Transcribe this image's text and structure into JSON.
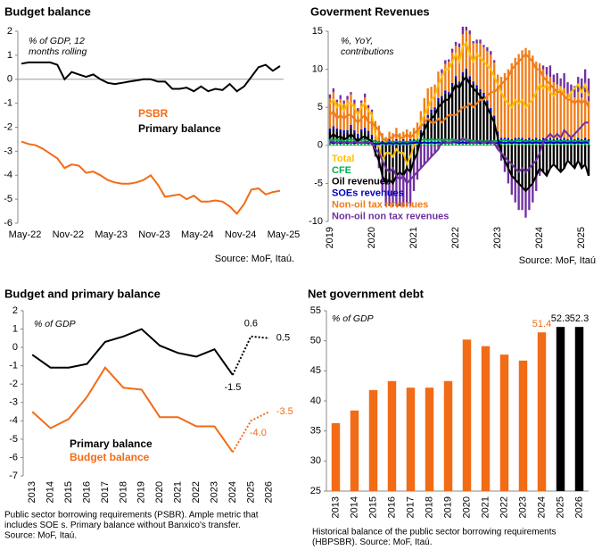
{
  "chart_data": [
    {
      "type": "line",
      "title": "Budget balance",
      "annotation": [
        "% of GDP, 12",
        "months rolling"
      ],
      "categories": [
        "May-22",
        null,
        null,
        null,
        null,
        null,
        "Nov-22",
        null,
        null,
        null,
        null,
        null,
        "May-23",
        null,
        null,
        null,
        null,
        null,
        "Nov-23",
        null,
        null,
        null,
        null,
        null,
        "May-24",
        null,
        null,
        null,
        null,
        null,
        "Nov-24",
        null,
        null,
        null,
        null,
        null,
        "May-25"
      ],
      "series": [
        {
          "name": "PSBR",
          "color": "#f26b16",
          "values": [
            -2.6,
            -2.7,
            -2.75,
            -2.9,
            -3.1,
            -3.3,
            -3.7,
            -3.55,
            -3.6,
            -3.9,
            -3.85,
            -4.0,
            -4.2,
            -4.3,
            -4.35,
            -4.35,
            -4.3,
            -4.2,
            -4.0,
            -4.4,
            -4.9,
            -4.85,
            -4.8,
            -5.0,
            -4.85,
            -5.1,
            -5.1,
            -5.05,
            -5.1,
            -5.3,
            -5.6,
            -5.2,
            -4.6,
            -4.55,
            -4.8,
            -4.7,
            -4.65
          ]
        },
        {
          "name": "Primary balance",
          "color": "#000000",
          "values": [
            0.65,
            0.7,
            0.7,
            0.7,
            0.7,
            0.6,
            0.0,
            0.3,
            0.2,
            0.1,
            0.2,
            0.0,
            -0.15,
            -0.2,
            -0.15,
            -0.1,
            -0.05,
            0.0,
            0.0,
            -0.1,
            -0.1,
            -0.4,
            -0.4,
            -0.35,
            -0.5,
            -0.3,
            -0.5,
            -0.4,
            -0.45,
            -0.2,
            -0.5,
            -0.3,
            0.1,
            0.5,
            0.6,
            0.35,
            0.55
          ]
        }
      ],
      "ylim": [
        -6,
        2
      ],
      "yticks": [
        -6,
        -5,
        -4,
        -3,
        -2,
        -1,
        0,
        1,
        2
      ],
      "zero_line": true,
      "source": "Source: MoF, Itaú."
    },
    {
      "type": "bar",
      "stacked": true,
      "title": "Goverment Revenues",
      "annotation": [
        "%, YoY,",
        "contributions"
      ],
      "categories": [
        "2019",
        null,
        null,
        null,
        null,
        null,
        null,
        null,
        null,
        null,
        null,
        null,
        "2020",
        null,
        null,
        null,
        null,
        null,
        null,
        null,
        null,
        null,
        null,
        null,
        "2021",
        null,
        null,
        null,
        null,
        null,
        null,
        null,
        null,
        null,
        null,
        null,
        "2022",
        null,
        null,
        null,
        null,
        null,
        null,
        null,
        null,
        null,
        null,
        null,
        "2023",
        null,
        null,
        null,
        null,
        null,
        null,
        null,
        null,
        null,
        null,
        null,
        "2024",
        null,
        null,
        null,
        null,
        null,
        null,
        null,
        null,
        null,
        null,
        null,
        "2025",
        null,
        null
      ],
      "series": [
        {
          "name": "Total",
          "type": "line",
          "color": "#ffc000",
          "values": [
            5.5,
            6,
            5,
            5.5,
            4.5,
            5.5,
            5.5,
            5,
            4,
            5,
            5.5,
            4.5,
            4,
            1.5,
            0,
            -2,
            -1,
            -1,
            -1.5,
            -0.5,
            -1,
            -1,
            -2.5,
            -1.5,
            0,
            1,
            3,
            4,
            5,
            6,
            6.5,
            8,
            9,
            10,
            10,
            11,
            12,
            11,
            13,
            13.5,
            12,
            11,
            12,
            11.5,
            11,
            10.5,
            10,
            9,
            8,
            7,
            6,
            5.5,
            5,
            6,
            5.5,
            6,
            5,
            5.5,
            6,
            7,
            8,
            7.5,
            8,
            7,
            6.5,
            7,
            7.5,
            6.5,
            6,
            7,
            7.5,
            8,
            7,
            8,
            6.5
          ]
        },
        {
          "name": "CFE",
          "color": "#00b050",
          "values": [
            0.8,
            0.7,
            0.8,
            0.6,
            0.8,
            0.7,
            0.8,
            0.7,
            0.6,
            0.8,
            0.7,
            0.8,
            0.6,
            0.5,
            0.4,
            0.3,
            0.4,
            0.5,
            0.4,
            0.5,
            0.4,
            0.5,
            0.4,
            0.5,
            0.5,
            0.6,
            0.7,
            0.8,
            0.7,
            0.8,
            0.7,
            0.8,
            0.7,
            0.8,
            0.7,
            0.8,
            0.7,
            0.6,
            0.7,
            0.8,
            0.7,
            0.6,
            0.5,
            0.6,
            0.5,
            0.6,
            0.5,
            0.6,
            0.5,
            0.6,
            0.7,
            0.6,
            0.5,
            0.6,
            0.7,
            0.6,
            0.5,
            0.6,
            0.5,
            0.6,
            0.5,
            0.6,
            0.5,
            0.6,
            0.5,
            0.6,
            0.5,
            0.6,
            0.5,
            0.6,
            0.5,
            0.6,
            0.5,
            0.6,
            0.5
          ]
        },
        {
          "name": "Oil revenues",
          "color": "#000000",
          "values": [
            1,
            1.5,
            1,
            1.2,
            0.8,
            1,
            1.5,
            1,
            0.5,
            1,
            1.2,
            0.8,
            0.5,
            -1,
            -2,
            -4,
            -5,
            -4.5,
            -5,
            -4,
            -3.5,
            -4,
            -3,
            -3.5,
            -2,
            -1,
            1,
            2,
            3,
            3.5,
            4,
            5,
            5.5,
            6,
            6,
            7,
            8,
            7.5,
            8.5,
            9,
            8,
            7.5,
            7,
            6.5,
            6,
            5,
            4,
            3,
            1,
            -1,
            -2,
            -3,
            -4,
            -4.5,
            -5,
            -5.5,
            -6,
            -5.5,
            -5,
            -4,
            -3,
            -3.5,
            -4,
            -3,
            -2.5,
            -3,
            -3.5,
            -3,
            -2,
            -2.5,
            -3,
            -2,
            -3,
            -2.5,
            -4
          ]
        },
        {
          "name": "SOEs revenues",
          "color": "#0000c0",
          "values": [
            0.4,
            0.3,
            0.4,
            0.3,
            0.4,
            0.3,
            0.4,
            0.3,
            0.4,
            0.3,
            0.4,
            0.3,
            0.3,
            0.2,
            0.2,
            0.3,
            0.2,
            0.3,
            0.2,
            0.3,
            0.2,
            0.3,
            0.2,
            0.3,
            0.3,
            0.4,
            0.3,
            0.4,
            0.3,
            0.4,
            0.3,
            0.4,
            0.3,
            0.4,
            0.3,
            0.4,
            0.4,
            0.3,
            0.4,
            0.3,
            0.4,
            0.3,
            0.4,
            0.3,
            0.4,
            0.3,
            0.4,
            0.3,
            0.3,
            0.4,
            0.3,
            0.4,
            0.3,
            0.4,
            0.3,
            0.4,
            0.3,
            0.4,
            0.3,
            0.4,
            0.3,
            0.4,
            0.3,
            0.4,
            0.3,
            0.4,
            0.3,
            0.4,
            0.3,
            0.4,
            0.3,
            0.4,
            0.3,
            0.4,
            0.3
          ]
        },
        {
          "name": "Non-oil tax revenues",
          "color": "#f07d19",
          "values": [
            4,
            4.5,
            3.5,
            4,
            3.5,
            4,
            4,
            3.5,
            3,
            3.5,
            4,
            3,
            3,
            2.5,
            2,
            1,
            0.5,
            1,
            1,
            1.5,
            1,
            1,
            1.5,
            1,
            1.5,
            2,
            2.5,
            3,
            3.5,
            3,
            3,
            3.5,
            3,
            3.5,
            4,
            4,
            4,
            4.5,
            5,
            5,
            5.5,
            5,
            5.5,
            6,
            6,
            6.5,
            7,
            7,
            7.5,
            8,
            8.5,
            9,
            10,
            10.5,
            11,
            11.5,
            12,
            11.5,
            11,
            10,
            10,
            9,
            8.5,
            8,
            7.5,
            7,
            7,
            6.5,
            6,
            6,
            5.5,
            6,
            5.5,
            6,
            5
          ]
        },
        {
          "name": "Non-oil non tax revenues",
          "color": "#7030a0",
          "values": [
            0.5,
            0.5,
            0.3,
            0.5,
            0.4,
            0.5,
            0.3,
            0.5,
            0.4,
            0.3,
            0.5,
            0.4,
            0.3,
            -0.5,
            -1,
            -2,
            -3,
            -3.5,
            -3,
            -4,
            -4.5,
            -4,
            -5,
            -4.5,
            -4,
            -3.5,
            -3,
            -2.5,
            -2,
            -1.5,
            -1,
            -0.5,
            0.5,
            0.5,
            0.3,
            0.5,
            0.5,
            0.5,
            1,
            0.5,
            0.5,
            0.3,
            0.5,
            0.5,
            0.3,
            0.5,
            0.5,
            0.3,
            -0.5,
            -1,
            -1.5,
            -2,
            -2.5,
            -3,
            -3.5,
            -3,
            -3.5,
            -3,
            -2.5,
            -2,
            -1,
            0.5,
            1,
            1.5,
            1,
            1.5,
            1,
            2,
            1.5,
            1,
            1.5,
            2,
            2.5,
            3,
            3
          ]
        }
      ],
      "ylim": [
        -10,
        15
      ],
      "yticks": [
        -10,
        -5,
        0,
        5,
        10,
        15
      ],
      "zero_line": true,
      "source": "Source: MoF, Itaú"
    },
    {
      "type": "line",
      "title": "Budget and primary balance",
      "annotation": [
        "% of GDP"
      ],
      "categories": [
        "2013",
        "2014",
        "2015",
        "2016",
        "2017",
        "2018",
        "2019",
        "2020",
        "2021",
        "2022",
        "2023",
        "2024",
        "2025",
        "2026"
      ],
      "series": [
        {
          "name": "Primary balance",
          "color": "#000000",
          "dashed_from": "2024",
          "values": [
            -0.4,
            -1.1,
            -1.1,
            -0.9,
            0.3,
            0.6,
            1.0,
            0.1,
            -0.3,
            -0.5,
            -0.1,
            -1.5,
            0.6,
            0.5
          ],
          "value_labels": [
            null,
            null,
            null,
            null,
            null,
            null,
            null,
            null,
            null,
            null,
            null,
            "-1.5",
            "0.6",
            "0.5"
          ]
        },
        {
          "name": "Budget balance",
          "color": "#f26b16",
          "dashed_from": "2024",
          "values": [
            -3.5,
            -4.4,
            -3.9,
            -2.7,
            -1.1,
            -2.2,
            -2.3,
            -3.8,
            -3.8,
            -4.3,
            -4.3,
            -5.7,
            -4.0,
            -3.5
          ],
          "value_labels": [
            null,
            null,
            null,
            null,
            null,
            null,
            null,
            null,
            null,
            null,
            null,
            null,
            "-4.0",
            "-3.5"
          ]
        }
      ],
      "ylim": [
        -7,
        2
      ],
      "yticks": [
        -7,
        -6,
        -5,
        -4,
        -3,
        -2,
        -1,
        0,
        1,
        2
      ],
      "notes": [
        "Public sector borrowing requirements (PSBR). Ample metric that",
        "includes SOE s. Primary balance without Banxico's transfer.",
        "Source: MoF, Itaú."
      ]
    },
    {
      "type": "bar",
      "title": "Net government debt",
      "annotation": [
        "% of GDP"
      ],
      "categories": [
        "2013",
        "2014",
        "2015",
        "2016",
        "2017",
        "2018",
        "2019",
        "2020",
        "2021",
        "2022",
        "2023",
        "2024",
        "2025",
        "2026"
      ],
      "values": [
        36.3,
        38.4,
        41.8,
        43.3,
        42.2,
        42.2,
        43.3,
        50.2,
        49.1,
        47.7,
        46.7,
        51.4,
        52.3,
        52.3
      ],
      "value_labels": [
        null,
        null,
        null,
        null,
        null,
        null,
        null,
        null,
        null,
        null,
        null,
        "51.4",
        "52.3",
        "52.3"
      ],
      "colors": [
        "#f26b16",
        "#f26b16",
        "#f26b16",
        "#f26b16",
        "#f26b16",
        "#f26b16",
        "#f26b16",
        "#f26b16",
        "#f26b16",
        "#f26b16",
        "#f26b16",
        "#f26b16",
        "#000000",
        "#000000"
      ],
      "ylim": [
        25,
        55
      ],
      "yticks": [
        25,
        30,
        35,
        40,
        45,
        50,
        55
      ],
      "notes": [
        "Historical balance of the public sector borrowing requirements",
        "(HBPSBR). Source: MoF, Itaú."
      ]
    }
  ]
}
